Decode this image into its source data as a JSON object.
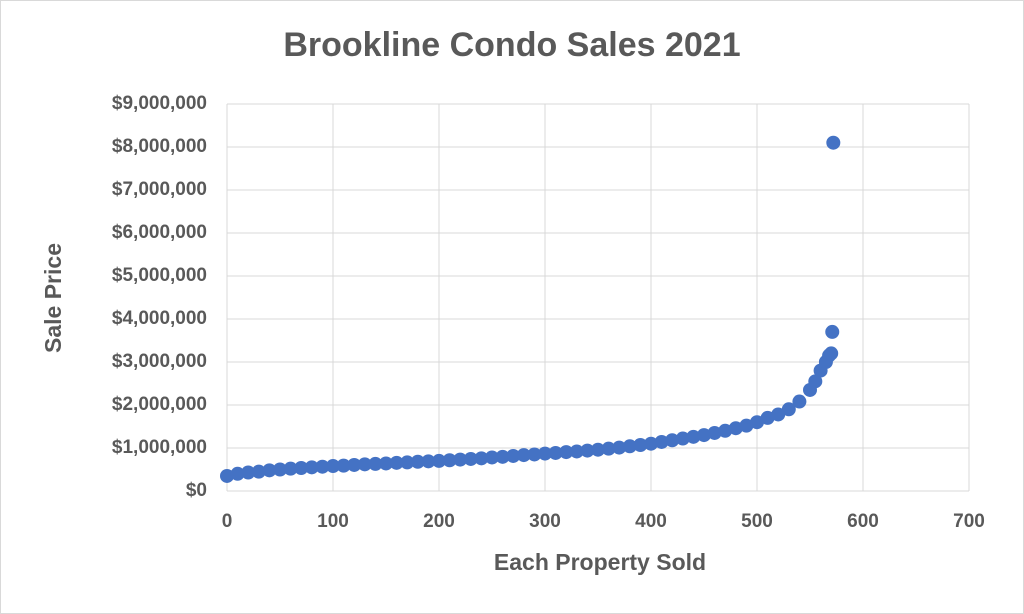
{
  "chart_data": {
    "type": "scatter",
    "title": "Brookline Condo Sales 2021",
    "x_label": "Each Property Sold",
    "y_label": "Sale Price",
    "series": [
      {
        "name": "Sale Price",
        "color": "#4472c4",
        "x": [
          0,
          10,
          20,
          30,
          40,
          50,
          60,
          70,
          80,
          90,
          100,
          110,
          120,
          130,
          140,
          150,
          160,
          170,
          180,
          190,
          200,
          210,
          220,
          230,
          240,
          250,
          260,
          270,
          280,
          290,
          300,
          310,
          320,
          330,
          340,
          350,
          360,
          370,
          380,
          390,
          400,
          410,
          420,
          430,
          440,
          450,
          460,
          470,
          480,
          490,
          500,
          510,
          520,
          530,
          540,
          550,
          555,
          560,
          565,
          568,
          570,
          571,
          572
        ],
        "values": [
          350000,
          400000,
          430000,
          450000,
          480000,
          500000,
          520000,
          535000,
          550000,
          565000,
          580000,
          590000,
          605000,
          620000,
          630000,
          640000,
          655000,
          665000,
          680000,
          690000,
          700000,
          715000,
          730000,
          745000,
          760000,
          780000,
          795000,
          815000,
          835000,
          850000,
          870000,
          885000,
          905000,
          920000,
          940000,
          960000,
          985000,
          1010000,
          1040000,
          1070000,
          1100000,
          1140000,
          1180000,
          1220000,
          1260000,
          1300000,
          1350000,
          1400000,
          1460000,
          1520000,
          1600000,
          1700000,
          1780000,
          1900000,
          2080000,
          2350000,
          2550000,
          2800000,
          3000000,
          3150000,
          3200000,
          3700000,
          8100000
        ]
      }
    ],
    "xlim": [
      0,
      700
    ],
    "xticks": [
      0,
      100,
      200,
      300,
      400,
      500,
      600,
      700
    ],
    "ylim": [
      0,
      9000000
    ],
    "yticks": [
      {
        "value": 0,
        "label": "$0"
      },
      {
        "value": 1000000,
        "label": "$1,000,000"
      },
      {
        "value": 2000000,
        "label": "$2,000,000"
      },
      {
        "value": 3000000,
        "label": "$3,000,000"
      },
      {
        "value": 4000000,
        "label": "$4,000,000"
      },
      {
        "value": 5000000,
        "label": "$5,000,000"
      },
      {
        "value": 6000000,
        "label": "$6,000,000"
      },
      {
        "value": 7000000,
        "label": "$7,000,000"
      },
      {
        "value": 8000000,
        "label": "$8,000,000"
      },
      {
        "value": 9000000,
        "label": "$9,000,000"
      }
    ],
    "grid": true
  }
}
